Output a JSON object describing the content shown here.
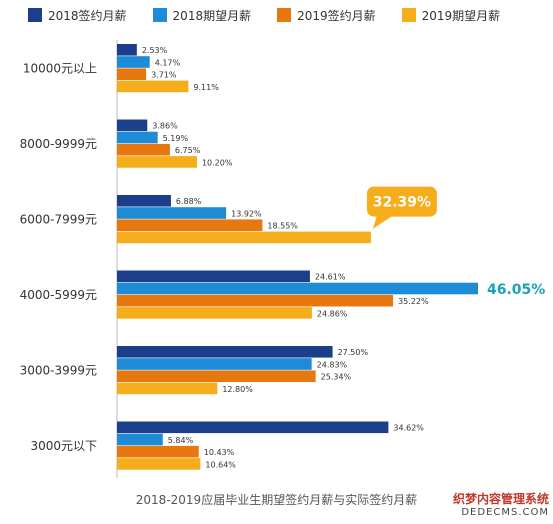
{
  "legend": [
    {
      "label": "2018签约月薪",
      "color": "#1b3f8b"
    },
    {
      "label": "2018期望月薪",
      "color": "#1f8ad6"
    },
    {
      "label": "2019签约月薪",
      "color": "#e6780f"
    },
    {
      "label": "2019期望月薪",
      "color": "#f6ad1c"
    }
  ],
  "chart_data": {
    "type": "bar",
    "orientation": "horizontal",
    "unit": "%",
    "categories": [
      "10000元以上",
      "8000-9999元",
      "6000-7999元",
      "4000-5999元",
      "3000-3999元",
      "3000元以下"
    ],
    "series": [
      {
        "name": "2018签约月薪",
        "color": "#1b3f8b",
        "values": [
          2.53,
          3.86,
          6.88,
          24.61,
          27.5,
          34.62
        ]
      },
      {
        "name": "2018期望月薪",
        "color": "#1f8ad6",
        "values": [
          4.17,
          5.19,
          13.92,
          46.05,
          24.83,
          5.84
        ]
      },
      {
        "name": "2019签约月薪",
        "color": "#e6780f",
        "values": [
          3.71,
          6.75,
          18.55,
          35.22,
          25.34,
          10.43
        ]
      },
      {
        "name": "2019期望月薪",
        "color": "#f6ad1c",
        "values": [
          9.11,
          10.2,
          32.39,
          24.86,
          12.8,
          10.64
        ]
      }
    ],
    "labels": [
      [
        "2.53%",
        "4.17%",
        "3.71%",
        "9.11%"
      ],
      [
        "3.86%",
        "5.19%",
        "6.75%",
        "10.20%"
      ],
      [
        "6.88%",
        "13.92%",
        "18.55%",
        ""
      ],
      [
        "24.61%",
        "",
        "35.22%",
        "24.86%"
      ],
      [
        "27.50%",
        "24.83%",
        "25.34%",
        "12.80%"
      ],
      [
        "34.62%",
        "5.84%",
        "10.43%",
        "10.64%"
      ]
    ],
    "callouts": [
      {
        "category_index": 2,
        "series_index": 3,
        "text": "32.39%",
        "style": "bubble",
        "color": "#f6ad1c"
      },
      {
        "category_index": 3,
        "series_index": 1,
        "text": "46.05%",
        "style": "bold",
        "color": "#1aa3b5"
      }
    ],
    "xlim": [
      0,
      46.05
    ],
    "grid": false,
    "legend_position": "top"
  },
  "caption": "2018-2019应届毕业生期望签约月薪与实际签约月薪",
  "watermark": {
    "cn": "织梦内容管理系统",
    "en": "DEDECMS.COM"
  }
}
